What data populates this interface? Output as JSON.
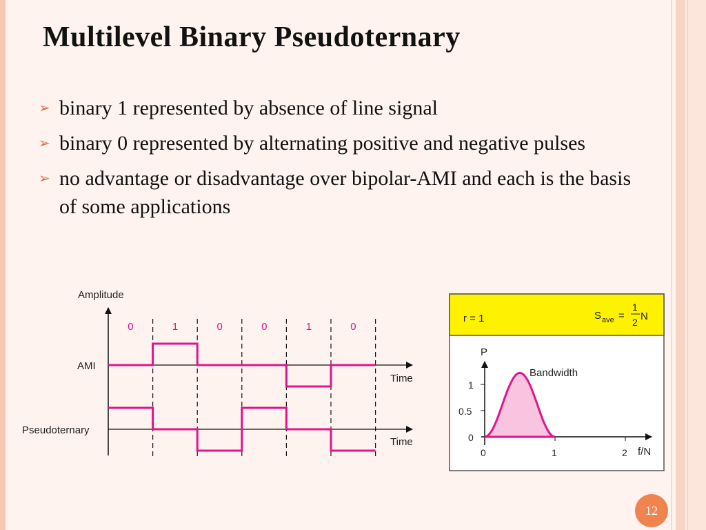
{
  "title": "Multilevel Binary Pseudoternary",
  "bullets": [
    {
      "text": "binary 1 represented by absence of line signal"
    },
    {
      "text": "binary 0 represented by alternating positive and negative pulses"
    },
    {
      "text": "no advantage or disadvantage over bipolar-AMI and each is the basis of some applications"
    }
  ],
  "signal_diagram": {
    "y_axis_label": "Amplitude",
    "bits": [
      "0",
      "1",
      "0",
      "0",
      "1",
      "0"
    ],
    "ami_label": "AMI",
    "pseudo_label": "Pseudoternary",
    "time_label": "Time",
    "ami_levels": [
      0,
      1,
      0,
      0,
      -1,
      0
    ],
    "pseudo_levels": [
      1,
      0,
      -1,
      1,
      0,
      -1
    ]
  },
  "spectrum": {
    "r_label": "r = 1",
    "s_symbol": "S",
    "s_subscript": "ave",
    "s_equals": "=",
    "frac_num": "1",
    "frac_den": "2",
    "frac_var": "N",
    "y_axis_label": "P",
    "x_axis_label": "f/N",
    "curve_label": "Bandwidth",
    "y_ticks": [
      "1",
      "0.5",
      "0"
    ],
    "x_ticks": [
      "0",
      "1",
      "2"
    ],
    "header_color": "#fff200",
    "curve_color": "#e0148c"
  },
  "colors": {
    "signal": "#e0148c",
    "bit_labels": "#e0148c",
    "accent": "#f0844e"
  },
  "page_number": "12"
}
